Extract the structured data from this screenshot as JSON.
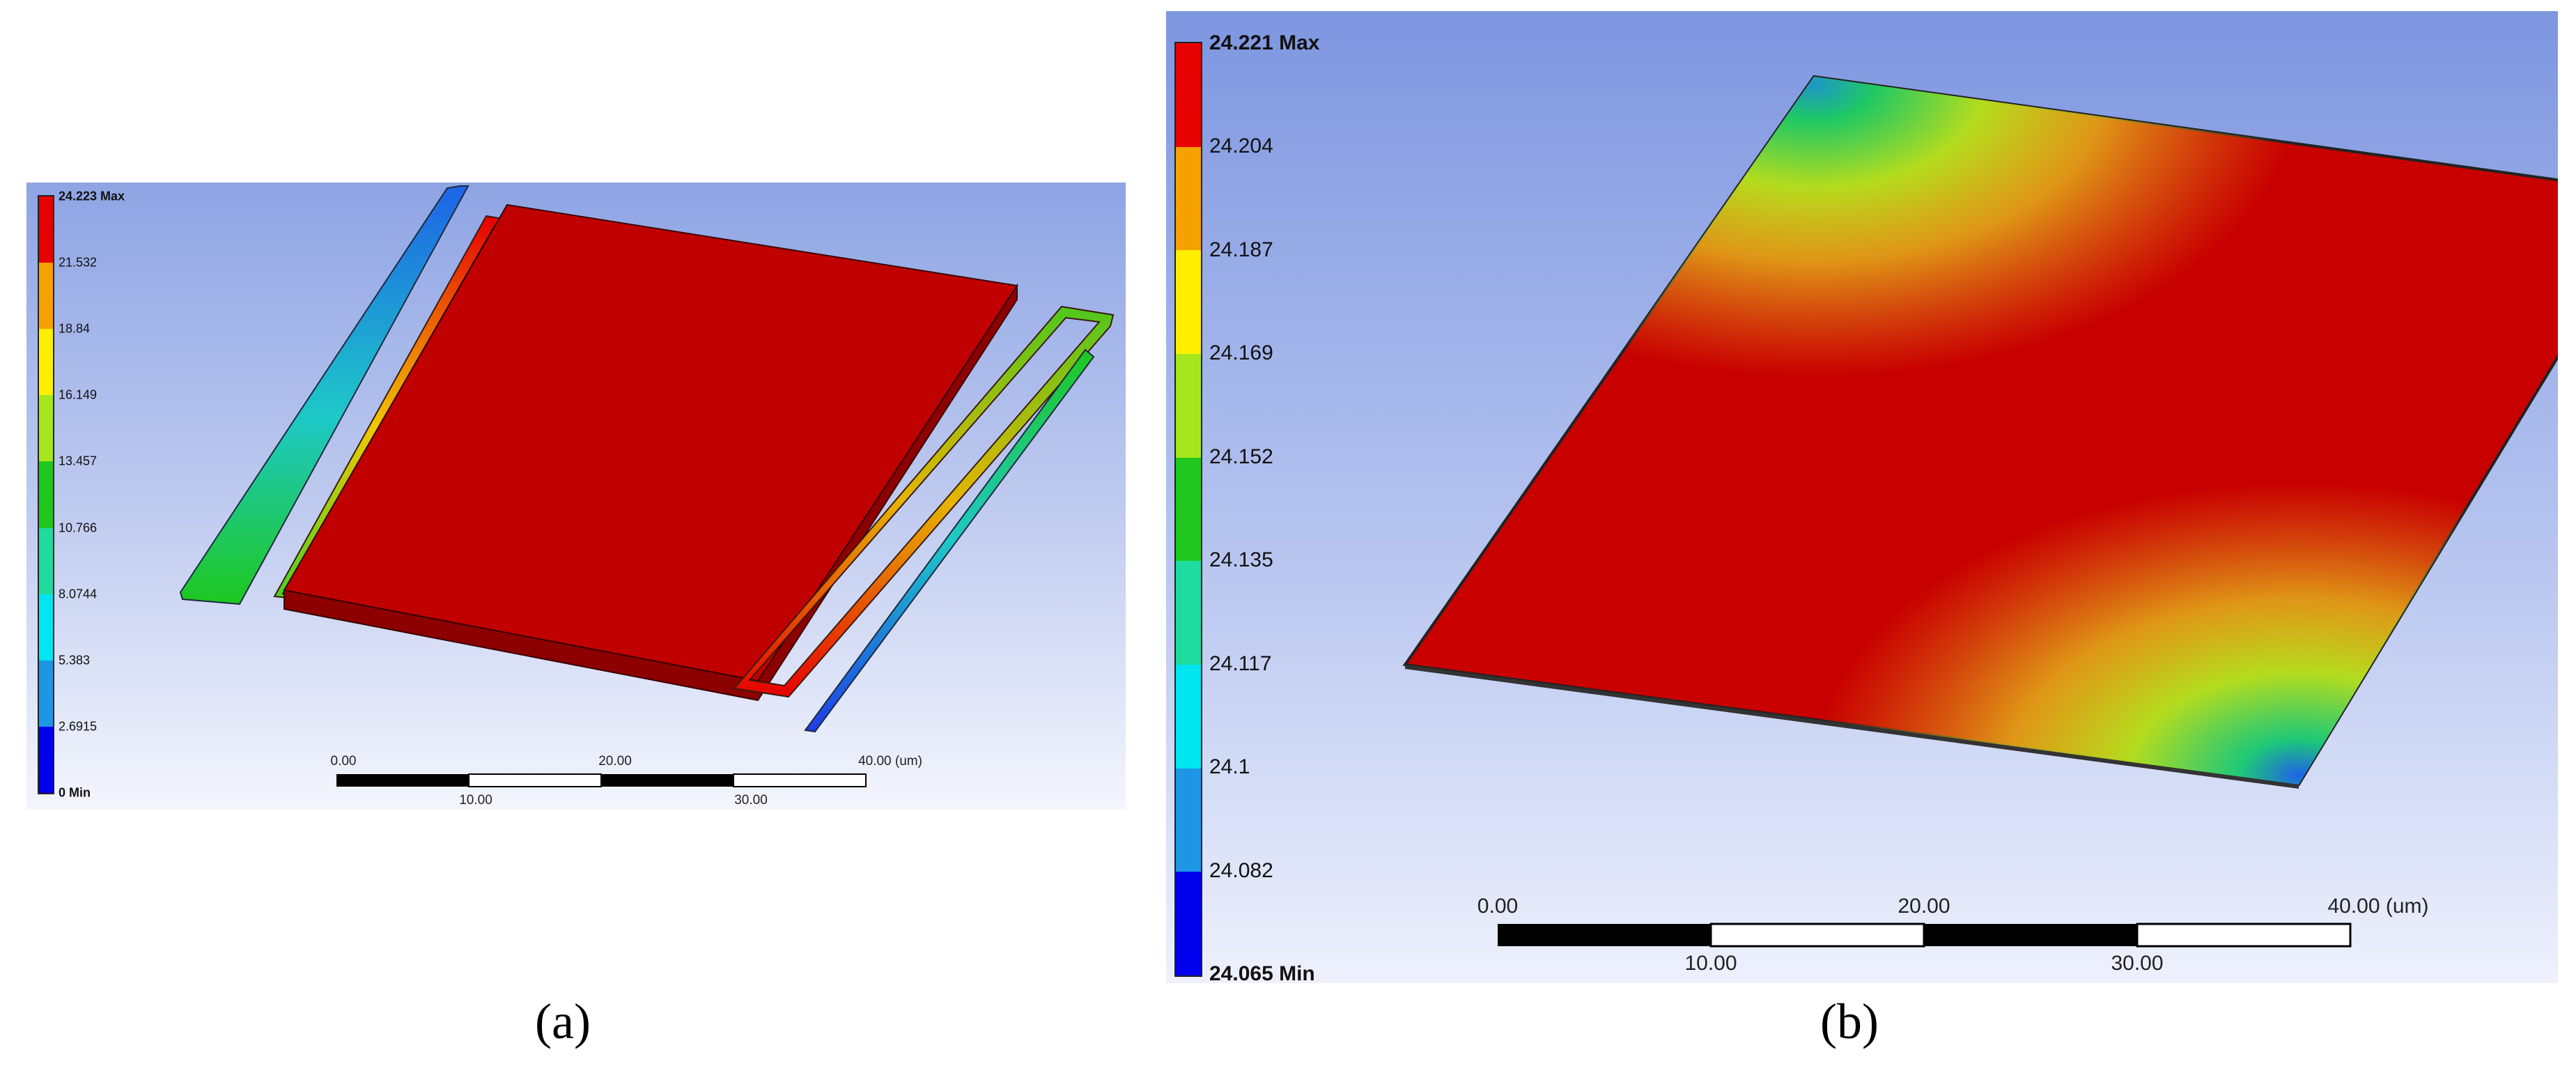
{
  "panel_a": {
    "legend": {
      "colors": [
        "#e60000",
        "#f5a100",
        "#ffee00",
        "#a6e61c",
        "#1ec81e",
        "#1edca0",
        "#00e6f0",
        "#1e96e6",
        "#0000ee"
      ],
      "labels": [
        "24.223 Max",
        "21.532",
        "18.84",
        "16.149",
        "13.457",
        "10.766",
        "8.0744",
        "5.383",
        "2.6915",
        "0 Min"
      ]
    },
    "scale": {
      "top_labels": [
        "0.00",
        "20.00",
        "40.00 (um)"
      ],
      "bottom_labels": [
        "10.00",
        "30.00"
      ]
    },
    "caption": "(a)"
  },
  "panel_b": {
    "legend": {
      "colors": [
        "#e60000",
        "#f5a100",
        "#ffee00",
        "#a6e61c",
        "#1ec81e",
        "#1edca0",
        "#00e6f0",
        "#1e96e6",
        "#0000ee"
      ],
      "labels": [
        "24.221 Max",
        "24.204",
        "24.187",
        "24.169",
        "24.152",
        "24.135",
        "24.117",
        "24.1",
        "24.082",
        "24.065 Min"
      ]
    },
    "scale": {
      "top_labels": [
        "0.00",
        "20.00",
        "40.00 (um)"
      ],
      "bottom_labels": [
        "10.00",
        "30.00"
      ]
    },
    "caption": "(b)"
  }
}
